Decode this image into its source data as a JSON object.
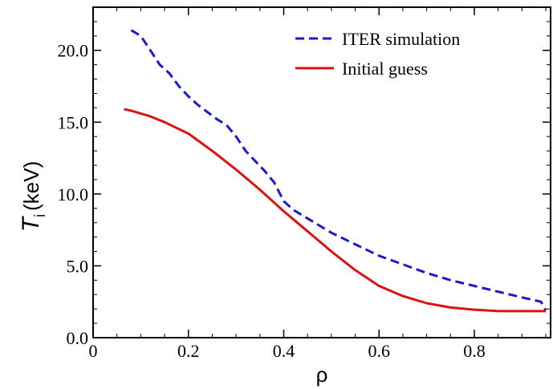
{
  "chart_data": {
    "type": "line",
    "xlabel": "ρ",
    "ylabel_main": "T",
    "ylabel_sub": "i",
    "ylabel_unit": "(keV)",
    "xlim": [
      0,
      0.96
    ],
    "ylim": [
      0,
      23
    ],
    "xticks": [
      0,
      0.2,
      0.4,
      0.6,
      0.8
    ],
    "xtick_labels": [
      "0",
      "0.2",
      "0.4",
      "0.6",
      "0.8"
    ],
    "yticks": [
      0,
      5,
      10,
      15,
      20
    ],
    "ytick_labels": [
      "0.0",
      "5.0",
      "10.0",
      "15.0",
      "20.0"
    ],
    "grid": false,
    "legend_position": "top-right",
    "series": [
      {
        "name": "ITER simulation",
        "color": "#1a1acc",
        "style": "dashed",
        "x": [
          0.08,
          0.1,
          0.12,
          0.14,
          0.16,
          0.18,
          0.2,
          0.22,
          0.24,
          0.26,
          0.28,
          0.3,
          0.32,
          0.34,
          0.36,
          0.38,
          0.4,
          0.42,
          0.45,
          0.5,
          0.55,
          0.6,
          0.65,
          0.7,
          0.75,
          0.8,
          0.85,
          0.9,
          0.94,
          0.95
        ],
        "y": [
          21.4,
          21.0,
          20.0,
          19.0,
          18.4,
          17.5,
          16.8,
          16.2,
          15.7,
          15.2,
          14.8,
          14.0,
          13.0,
          12.3,
          11.6,
          10.8,
          9.5,
          8.9,
          8.3,
          7.3,
          6.5,
          5.7,
          5.1,
          4.5,
          4.0,
          3.6,
          3.2,
          2.8,
          2.5,
          1.9
        ]
      },
      {
        "name": "Initial guess",
        "color": "#dd1111",
        "style": "solid",
        "x": [
          0.065,
          0.08,
          0.1,
          0.12,
          0.15,
          0.2,
          0.25,
          0.3,
          0.35,
          0.4,
          0.45,
          0.5,
          0.55,
          0.6,
          0.65,
          0.7,
          0.75,
          0.8,
          0.85,
          0.9,
          0.95
        ],
        "y": [
          15.9,
          15.8,
          15.6,
          15.4,
          15.0,
          14.2,
          13.0,
          11.7,
          10.3,
          8.8,
          7.4,
          6.0,
          4.7,
          3.6,
          2.9,
          2.4,
          2.1,
          1.95,
          1.85,
          1.85,
          1.85
        ]
      }
    ]
  }
}
